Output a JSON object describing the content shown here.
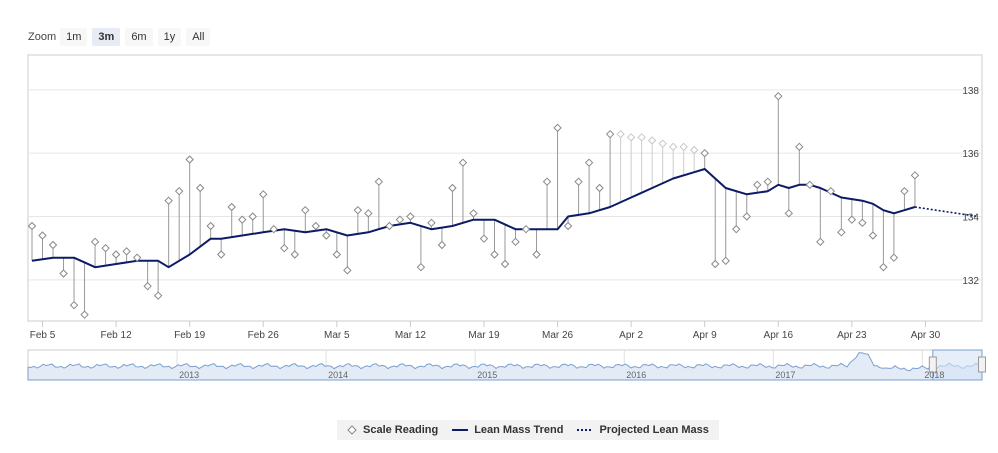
{
  "zoom": {
    "label": "Zoom",
    "buttons": [
      "1m",
      "3m",
      "6m",
      "1y",
      "All"
    ],
    "active": "3m"
  },
  "colors": {
    "trend": "#0d1a66",
    "marker": "#888888",
    "stem": "#999999",
    "future_stem": "#cccccc",
    "navigator_fill": "#e3ebf7",
    "navigator_line": "#7aa0cf"
  },
  "chart_data": {
    "type": "line",
    "xlim": [
      "2018-02-04",
      "2018-05-05"
    ],
    "ylim": [
      130.7,
      139.1
    ],
    "y_ticks": [
      132,
      134,
      136,
      138
    ],
    "x_ticks": [
      {
        "date": "2018-02-05",
        "label": "Feb 5"
      },
      {
        "date": "2018-02-12",
        "label": "Feb 12"
      },
      {
        "date": "2018-02-19",
        "label": "Feb 19"
      },
      {
        "date": "2018-02-26",
        "label": "Feb 26"
      },
      {
        "date": "2018-03-05",
        "label": "Mar 5"
      },
      {
        "date": "2018-03-12",
        "label": "Mar 12"
      },
      {
        "date": "2018-03-19",
        "label": "Mar 19"
      },
      {
        "date": "2018-03-26",
        "label": "Mar 26"
      },
      {
        "date": "2018-04-02",
        "label": "Apr 2"
      },
      {
        "date": "2018-04-09",
        "label": "Apr 9"
      },
      {
        "date": "2018-04-16",
        "label": "Apr 16"
      },
      {
        "date": "2018-04-23",
        "label": "Apr 23"
      },
      {
        "date": "2018-04-30",
        "label": "Apr 30"
      }
    ],
    "grid": true,
    "legend_position": "bottom-center",
    "series": [
      {
        "name": "Scale Reading",
        "style": "diamond-markers",
        "points": [
          [
            "2018-02-04",
            133.7
          ],
          [
            "2018-02-05",
            133.4
          ],
          [
            "2018-02-06",
            133.1
          ],
          [
            "2018-02-07",
            132.2
          ],
          [
            "2018-02-08",
            131.2
          ],
          [
            "2018-02-09",
            130.9
          ],
          [
            "2018-02-10",
            133.2
          ],
          [
            "2018-02-11",
            133.0
          ],
          [
            "2018-02-12",
            132.8
          ],
          [
            "2018-02-13",
            132.9
          ],
          [
            "2018-02-14",
            132.7
          ],
          [
            "2018-02-15",
            131.8
          ],
          [
            "2018-02-16",
            131.5
          ],
          [
            "2018-02-17",
            134.5
          ],
          [
            "2018-02-18",
            134.8
          ],
          [
            "2018-02-19",
            135.8
          ],
          [
            "2018-02-20",
            134.9
          ],
          [
            "2018-02-21",
            133.7
          ],
          [
            "2018-02-22",
            132.8
          ],
          [
            "2018-02-23",
            134.3
          ],
          [
            "2018-02-24",
            133.9
          ],
          [
            "2018-02-25",
            134.0
          ],
          [
            "2018-02-26",
            134.7
          ],
          [
            "2018-02-27",
            133.6
          ],
          [
            "2018-02-28",
            133.0
          ],
          [
            "2018-03-01",
            132.8
          ],
          [
            "2018-03-02",
            134.2
          ],
          [
            "2018-03-03",
            133.7
          ],
          [
            "2018-03-04",
            133.4
          ],
          [
            "2018-03-05",
            132.8
          ],
          [
            "2018-03-06",
            132.3
          ],
          [
            "2018-03-07",
            134.2
          ],
          [
            "2018-03-08",
            134.1
          ],
          [
            "2018-03-09",
            135.1
          ],
          [
            "2018-03-10",
            133.7
          ],
          [
            "2018-03-11",
            133.9
          ],
          [
            "2018-03-12",
            134.0
          ],
          [
            "2018-03-13",
            132.4
          ],
          [
            "2018-03-14",
            133.8
          ],
          [
            "2018-03-15",
            133.1
          ],
          [
            "2018-03-16",
            134.9
          ],
          [
            "2018-03-17",
            135.7
          ],
          [
            "2018-03-18",
            134.1
          ],
          [
            "2018-03-19",
            133.3
          ],
          [
            "2018-03-20",
            132.8
          ],
          [
            "2018-03-21",
            132.5
          ],
          [
            "2018-03-22",
            133.2
          ],
          [
            "2018-03-23",
            133.6
          ],
          [
            "2018-03-24",
            132.8
          ],
          [
            "2018-03-25",
            135.1
          ],
          [
            "2018-03-26",
            136.8
          ],
          [
            "2018-03-27",
            133.7
          ],
          [
            "2018-03-28",
            135.1
          ],
          [
            "2018-03-29",
            135.7
          ],
          [
            "2018-03-30",
            134.9
          ],
          [
            "2018-03-31",
            136.6
          ],
          [
            "2018-04-09",
            136.0
          ],
          [
            "2018-04-10",
            132.5
          ],
          [
            "2018-04-11",
            132.6
          ],
          [
            "2018-04-12",
            133.6
          ],
          [
            "2018-04-13",
            134.0
          ],
          [
            "2018-04-14",
            135.0
          ],
          [
            "2018-04-15",
            135.1
          ],
          [
            "2018-04-16",
            137.8
          ],
          [
            "2018-04-17",
            134.1
          ],
          [
            "2018-04-18",
            136.2
          ],
          [
            "2018-04-19",
            135.0
          ],
          [
            "2018-04-20",
            133.2
          ],
          [
            "2018-04-21",
            134.8
          ],
          [
            "2018-04-22",
            133.5
          ],
          [
            "2018-04-23",
            133.9
          ],
          [
            "2018-04-24",
            133.8
          ],
          [
            "2018-04-25",
            133.4
          ],
          [
            "2018-04-26",
            132.4
          ],
          [
            "2018-04-27",
            132.7
          ],
          [
            "2018-04-28",
            134.8
          ],
          [
            "2018-04-29",
            135.3
          ]
        ]
      },
      {
        "name": "Scale Reading (interpolated)",
        "style": "faded-diamond-markers",
        "points": [
          [
            "2018-04-01",
            136.6
          ],
          [
            "2018-04-02",
            136.5
          ],
          [
            "2018-04-03",
            136.5
          ],
          [
            "2018-04-04",
            136.4
          ],
          [
            "2018-04-05",
            136.3
          ],
          [
            "2018-04-06",
            136.2
          ],
          [
            "2018-04-07",
            136.2
          ],
          [
            "2018-04-08",
            136.1
          ]
        ]
      },
      {
        "name": "Lean Mass Trend",
        "style": "solid-line",
        "points": [
          [
            "2018-02-04",
            132.6
          ],
          [
            "2018-02-06",
            132.7
          ],
          [
            "2018-02-08",
            132.7
          ],
          [
            "2018-02-10",
            132.4
          ],
          [
            "2018-02-12",
            132.5
          ],
          [
            "2018-02-14",
            132.6
          ],
          [
            "2018-02-16",
            132.6
          ],
          [
            "2018-02-17",
            132.4
          ],
          [
            "2018-02-19",
            132.8
          ],
          [
            "2018-02-21",
            133.3
          ],
          [
            "2018-02-22",
            133.3
          ],
          [
            "2018-02-24",
            133.4
          ],
          [
            "2018-02-26",
            133.5
          ],
          [
            "2018-02-28",
            133.6
          ],
          [
            "2018-03-02",
            133.5
          ],
          [
            "2018-03-04",
            133.6
          ],
          [
            "2018-03-06",
            133.4
          ],
          [
            "2018-03-08",
            133.5
          ],
          [
            "2018-03-10",
            133.7
          ],
          [
            "2018-03-12",
            133.8
          ],
          [
            "2018-03-14",
            133.6
          ],
          [
            "2018-03-16",
            133.7
          ],
          [
            "2018-03-18",
            133.9
          ],
          [
            "2018-03-20",
            133.9
          ],
          [
            "2018-03-22",
            133.6
          ],
          [
            "2018-03-24",
            133.6
          ],
          [
            "2018-03-26",
            133.6
          ],
          [
            "2018-03-27",
            134.0
          ],
          [
            "2018-03-29",
            134.1
          ],
          [
            "2018-03-31",
            134.3
          ],
          [
            "2018-04-02",
            134.6
          ],
          [
            "2018-04-04",
            134.9
          ],
          [
            "2018-04-06",
            135.2
          ],
          [
            "2018-04-08",
            135.4
          ],
          [
            "2018-04-09",
            135.5
          ],
          [
            "2018-04-10",
            135.2
          ],
          [
            "2018-04-11",
            134.9
          ],
          [
            "2018-04-13",
            134.7
          ],
          [
            "2018-04-15",
            134.8
          ],
          [
            "2018-04-16",
            135.0
          ],
          [
            "2018-04-17",
            134.9
          ],
          [
            "2018-04-18",
            135.0
          ],
          [
            "2018-04-19",
            135.0
          ],
          [
            "2018-04-20",
            134.9
          ],
          [
            "2018-04-22",
            134.6
          ],
          [
            "2018-04-24",
            134.5
          ],
          [
            "2018-04-25",
            134.4
          ],
          [
            "2018-04-26",
            134.2
          ],
          [
            "2018-04-27",
            134.1
          ],
          [
            "2018-04-28",
            134.2
          ],
          [
            "2018-04-29",
            134.3
          ]
        ]
      },
      {
        "name": "Projected Lean Mass",
        "style": "dotted-line",
        "points": [
          [
            "2018-04-29",
            134.3
          ],
          [
            "2018-05-01",
            134.2
          ],
          [
            "2018-05-03",
            134.1
          ],
          [
            "2018-05-05",
            134.0
          ]
        ]
      }
    ],
    "navigator": {
      "xlim": [
        2012,
        2018.4
      ],
      "year_labels": [
        "2013",
        "2014",
        "2015",
        "2016",
        "2017",
        "2018"
      ],
      "selected_range": [
        2018.07,
        2018.4
      ]
    }
  },
  "legend": {
    "items": [
      {
        "label": "Scale Reading"
      },
      {
        "label": "Lean Mass Trend"
      },
      {
        "label": "Projected Lean Mass"
      }
    ]
  }
}
